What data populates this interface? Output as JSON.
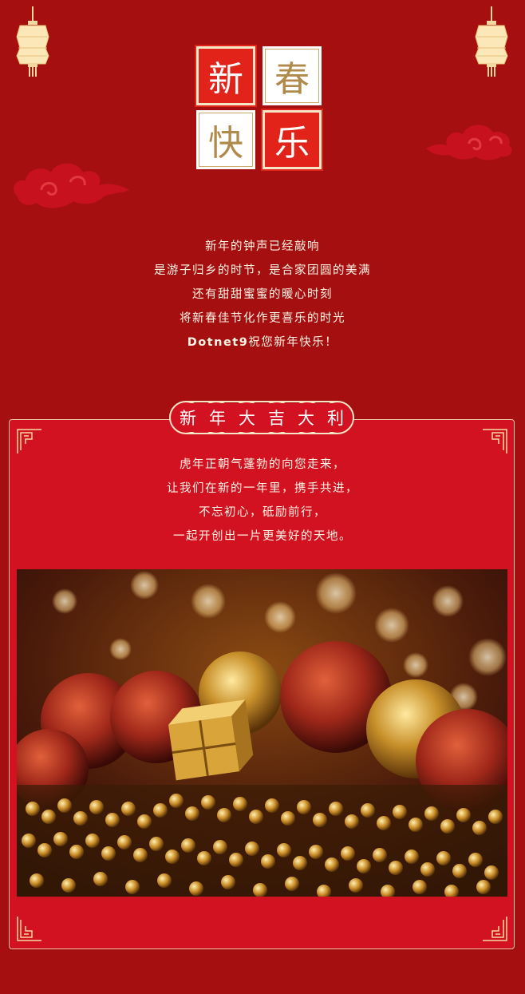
{
  "title_chars": [
    "新",
    "春",
    "快",
    "乐"
  ],
  "greeting_lines": [
    "新年的钟声已经敲响",
    "是游子归乡的时节，是合家团圆的美满",
    "还有甜甜蜜蜜的暖心时刻",
    "将新春佳节化作更喜乐的时光"
  ],
  "greeting_sign": {
    "brand": "Dotnet9",
    "text": "祝您新年快乐！"
  },
  "banner_chars": [
    "新",
    "年",
    "大",
    "吉",
    "大",
    "利"
  ],
  "card_lines": [
    "虎年正朝气蓬勃的向您走来，",
    "让我们在新的一年里，携手共进，",
    "不忘初心，砥励前行，",
    "一起开创出一片更美好的天地。"
  ],
  "photo_icon": "golden-baubles-photo",
  "colors": {
    "background": "#a50f0f",
    "card": "#d31221",
    "accent_red": "#e2231a",
    "gold": "#f5d8a0"
  }
}
